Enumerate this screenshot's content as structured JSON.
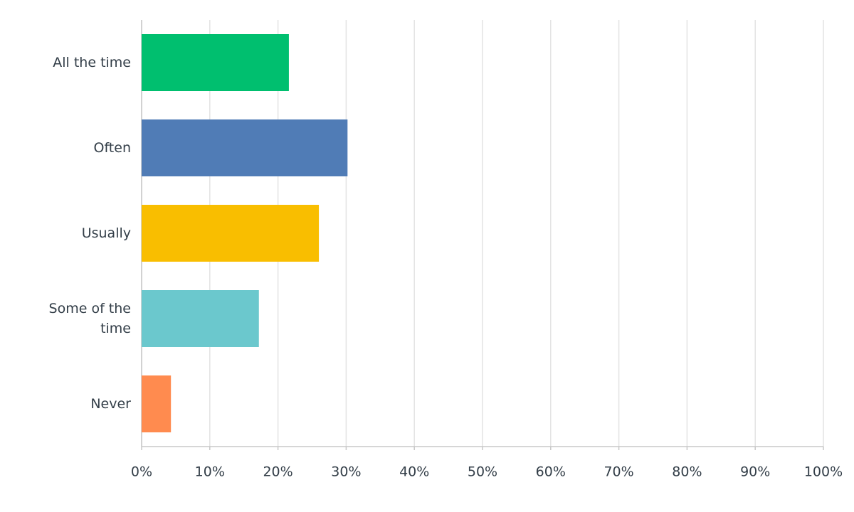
{
  "chart_data": {
    "type": "hbar",
    "categories": [
      "All the time",
      "Often",
      "Usually",
      "Some of the time",
      "Never"
    ],
    "values": [
      21.6,
      30.2,
      26.0,
      17.2,
      4.3
    ],
    "colors": [
      "#00bf6f",
      "#507cb6",
      "#f9be00",
      "#6bc8cd",
      "#ff8b4f"
    ],
    "xlim": [
      0,
      100
    ],
    "xticks": [
      {
        "value": 0,
        "label": "0%"
      },
      {
        "value": 10,
        "label": "10%"
      },
      {
        "value": 20,
        "label": "20%"
      },
      {
        "value": 30,
        "label": "30%"
      },
      {
        "value": 40,
        "label": "40%"
      },
      {
        "value": 50,
        "label": "50%"
      },
      {
        "value": 60,
        "label": "60%"
      },
      {
        "value": 70,
        "label": "70%"
      },
      {
        "value": 80,
        "label": "80%"
      },
      {
        "value": 90,
        "label": "90%"
      },
      {
        "value": 100,
        "label": "100%"
      }
    ],
    "grid": true
  }
}
